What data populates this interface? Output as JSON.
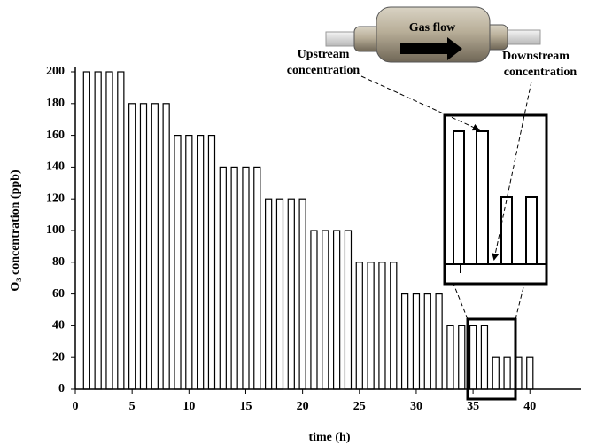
{
  "chart_data": {
    "type": "bar",
    "x_label": "time (h)",
    "y_label": "O₃ concentration (ppb)",
    "annotations": {
      "gas_flow": "Gas flow",
      "upstream": [
        "Upstream",
        "concentration"
      ],
      "downstream": [
        "Downstream",
        "concentration"
      ]
    },
    "x": [
      1,
      2,
      3,
      4,
      5,
      6,
      7,
      8,
      9,
      10,
      11,
      12,
      13,
      14,
      15,
      16,
      17,
      18,
      19,
      20,
      21,
      22,
      23,
      24,
      25,
      26,
      27,
      28,
      29,
      30,
      31,
      32,
      33,
      34,
      35,
      36,
      37,
      38,
      39,
      40
    ],
    "values": [
      200,
      200,
      200,
      200,
      180,
      180,
      180,
      180,
      160,
      160,
      160,
      160,
      140,
      140,
      140,
      140,
      120,
      120,
      120,
      120,
      100,
      100,
      100,
      100,
      80,
      80,
      80,
      80,
      60,
      60,
      60,
      60,
      40,
      40,
      40,
      40,
      20,
      20,
      20,
      20
    ],
    "color": "#ffffff",
    "xlim": [
      0,
      44.5
    ],
    "xticks": [
      0,
      5,
      10,
      15,
      20,
      25,
      30,
      35,
      40
    ],
    "ylim": [
      0,
      200
    ],
    "yticks": [
      0,
      20,
      40,
      60,
      80,
      100,
      120,
      140,
      160,
      180,
      200
    ],
    "grid": false
  }
}
